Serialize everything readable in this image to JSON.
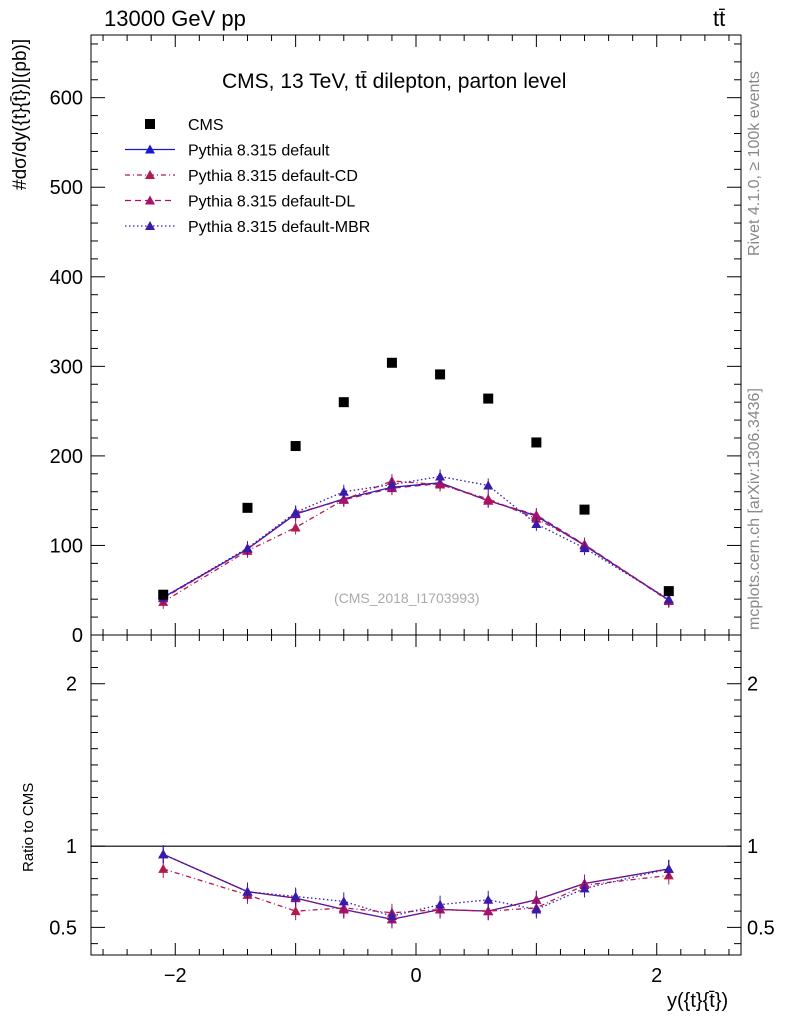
{
  "header": {
    "left": "13000 GeV pp",
    "right": "tt̄"
  },
  "side_labels": {
    "rivet": "Rivet 4.1.0, ≥ 100k events",
    "mcplots": "mcplots.cern.ch [arXiv:1306.3436]"
  },
  "chart_data": {
    "type": "scatter",
    "title": "CMS, 13 TeV, tt̄ dilepton, parton level",
    "watermark": "(CMS_2018_I1703993)",
    "xlabel": "y({t}{t̄})",
    "ylabel": "#dσ/dy({t}{t̄})[(pb)]",
    "ratio_ylabel": "Ratio to CMS",
    "x": [
      -2.1,
      -1.4,
      -1.0,
      -0.6,
      -0.2,
      0.2,
      0.6,
      1.0,
      1.4,
      2.1
    ],
    "xlim": [
      -2.7,
      2.7
    ],
    "ylim": [
      0,
      670
    ],
    "ratio_ylim": [
      0.33,
      2.3
    ],
    "x_ticks": [
      -2,
      0,
      2
    ],
    "x_tick_labels": [
      "−2",
      "0",
      "2"
    ],
    "y_ticks": [
      0,
      100,
      200,
      300,
      400,
      500,
      600
    ],
    "y_tick_labels": [
      "0",
      "100",
      "200",
      "300",
      "400",
      "500",
      "600"
    ],
    "ratio_ticks": [
      0.5,
      1,
      2
    ],
    "ratio_tick_labels": [
      "0.5",
      "1",
      "2"
    ],
    "legend": [
      "CMS",
      "Pythia 8.315 default",
      "Pythia 8.315 default-CD",
      "Pythia 8.315 default-DL",
      "Pythia 8.315 default-MBR"
    ],
    "data": {
      "name": "CMS",
      "values": [
        45,
        142,
        211,
        260,
        304,
        291,
        264,
        215,
        140,
        49
      ]
    },
    "series": [
      {
        "name": "Pythia 8.315 default",
        "color": "#1a1acc",
        "dash": "solid",
        "values": [
          42,
          96,
          135,
          152,
          165,
          170,
          150,
          133,
          100,
          39
        ],
        "ratio": [
          0.95,
          0.72,
          0.68,
          0.61,
          0.55,
          0.61,
          0.6,
          0.67,
          0.77,
          0.86
        ]
      },
      {
        "name": "Pythia 8.315 default-CD",
        "color": "#b3184f",
        "dash": "dashdot",
        "values": [
          37,
          94,
          120,
          151,
          172,
          168,
          152,
          130,
          101,
          38
        ],
        "ratio": [
          0.86,
          0.7,
          0.6,
          0.62,
          0.59,
          0.61,
          0.6,
          0.62,
          0.76,
          0.82
        ]
      },
      {
        "name": "Pythia 8.315 default-DL",
        "color": "#aa1166",
        "dash": "dash",
        "values": [
          41,
          96,
          136,
          151,
          164,
          169,
          150,
          134,
          101,
          39
        ],
        "ratio": [
          0.95,
          0.72,
          0.68,
          0.61,
          0.55,
          0.61,
          0.6,
          0.67,
          0.77,
          0.86
        ]
      },
      {
        "name": "Pythia 8.315 default-MBR",
        "color": "#3a1aaa",
        "dash": "dot",
        "values": [
          42,
          97,
          137,
          160,
          168,
          177,
          167,
          124,
          97,
          40
        ],
        "ratio": [
          0.95,
          0.72,
          0.69,
          0.66,
          0.57,
          0.64,
          0.67,
          0.61,
          0.74,
          0.86
        ]
      }
    ]
  }
}
